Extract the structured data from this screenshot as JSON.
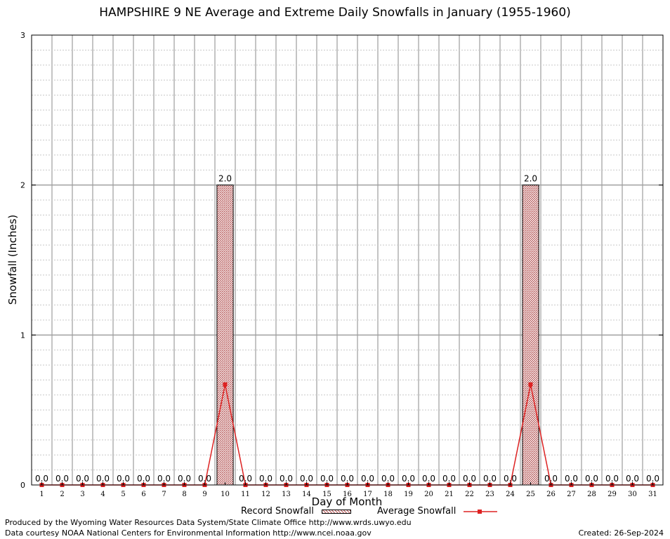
{
  "chart_data": {
    "type": "bar",
    "title": "HAMPSHIRE 9 NE Average and Extreme Daily Snowfalls in January (1955-1960)",
    "xlabel": "Day of Month",
    "ylabel": "Snowfall (Inches)",
    "ylim": [
      0,
      3
    ],
    "yticks": [
      "0",
      "1",
      "2",
      "3"
    ],
    "grid": true,
    "legend_placement": "bottom",
    "categories": [
      "1",
      "2",
      "3",
      "4",
      "5",
      "6",
      "7",
      "8",
      "9",
      "10",
      "11",
      "12",
      "13",
      "14",
      "15",
      "16",
      "17",
      "18",
      "19",
      "20",
      "21",
      "22",
      "23",
      "24",
      "25",
      "26",
      "27",
      "28",
      "29",
      "30",
      "31"
    ],
    "data_labels": [
      "0.0",
      "0.0",
      "0.0",
      "0.0",
      "0.0",
      "0.0",
      "0.0",
      "0.0",
      "0.0",
      "2.0",
      "0.0",
      "0.0",
      "0.0",
      "0.0",
      "0.0",
      "0.0",
      "0.0",
      "0.0",
      "0.0",
      "0.0",
      "0.0",
      "0.0",
      "0.0",
      "0.0",
      "2.0",
      "0.0",
      "0.0",
      "0.0",
      "0.0",
      "0.0",
      "0.0"
    ],
    "series": [
      {
        "name": "Record Snowfall",
        "type": "bar",
        "color": "#b55555",
        "values": [
          0,
          0,
          0,
          0,
          0,
          0,
          0,
          0,
          0,
          2.0,
          0,
          0,
          0,
          0,
          0,
          0,
          0,
          0,
          0,
          0,
          0,
          0,
          0,
          0,
          2.0,
          0,
          0,
          0,
          0,
          0,
          0
        ]
      },
      {
        "name": "Average Snowfall",
        "type": "line",
        "color": "#dd2222",
        "values": [
          0,
          0,
          0,
          0,
          0,
          0,
          0,
          0,
          0,
          0.67,
          0,
          0,
          0,
          0,
          0,
          0,
          0,
          0,
          0,
          0,
          0,
          0,
          0,
          0,
          0.67,
          0,
          0,
          0,
          0,
          0,
          0
        ]
      }
    ]
  },
  "footer": {
    "credit_line1": "Produced by the Wyoming Water Resources Data System/State Climate Office http://www.wrds.uwyo.edu",
    "credit_line2": "Data courtesy NOAA National Centers for Environmental Information http://www.ncei.noaa.gov",
    "created": "Created:  26-Sep-2024"
  }
}
